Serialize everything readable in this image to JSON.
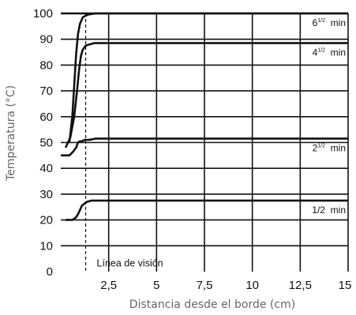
{
  "chart_data": {
    "type": "line",
    "title": "",
    "xlabel": "Distancia desde el borde (cm)",
    "ylabel": "Temperatura (°C)",
    "xlim": [
      0,
      15
    ],
    "ylim": [
      0,
      100
    ],
    "x_ticks": [
      "2,5",
      "5",
      "7,5",
      "10",
      "12,5",
      "15"
    ],
    "x_tick_values": [
      2.5,
      5,
      7.5,
      10,
      12.5,
      15
    ],
    "y_ticks": [
      "0",
      "10",
      "20",
      "30",
      "40",
      "50",
      "60",
      "70",
      "80",
      "90",
      "100"
    ],
    "y_tick_values": [
      0,
      10,
      20,
      30,
      40,
      50,
      60,
      70,
      80,
      90,
      100
    ],
    "grid": true,
    "annotation": {
      "label": "Línea de visión",
      "x": 1.3
    },
    "series": [
      {
        "label_main": "1/2",
        "label_sup": "",
        "label_unit": "min",
        "color": "#111111",
        "x": [
          0.25,
          0.6,
          0.8,
          0.95,
          1.1,
          1.35,
          1.6,
          15
        ],
        "y": [
          20,
          20,
          21,
          23,
          25.5,
          27,
          27.5,
          27.5
        ]
      },
      {
        "label_main": "2",
        "label_sup": "1/2",
        "label_unit": "min",
        "color": "#111111",
        "x": [
          0,
          0.45,
          0.65,
          0.8,
          0.9,
          1.0,
          1.1,
          1.25,
          1.5,
          1.8,
          15
        ],
        "y": [
          45,
          45,
          46.5,
          48,
          50,
          50.5,
          50.5,
          51,
          51,
          51.5,
          51.5
        ]
      },
      {
        "label_main": "4",
        "label_sup": "1/2",
        "label_unit": "min",
        "color": "#111111",
        "x": [
          0.25,
          0.5,
          0.7,
          0.85,
          0.95,
          1.05,
          1.15,
          1.3,
          1.5,
          1.75,
          15
        ],
        "y": [
          48,
          52,
          60,
          70,
          78,
          83.5,
          86,
          87.5,
          88,
          88.5,
          88.5
        ]
      },
      {
        "label_main": "6",
        "label_sup": "1/2",
        "label_unit": "min",
        "color": "#111111",
        "x": [
          0.45,
          0.6,
          0.7,
          0.8,
          0.9,
          1.0,
          1.15,
          1.4,
          1.8,
          15
        ],
        "y": [
          50,
          60,
          72,
          84,
          92,
          96,
          98.5,
          99.5,
          100,
          100
        ]
      }
    ]
  }
}
